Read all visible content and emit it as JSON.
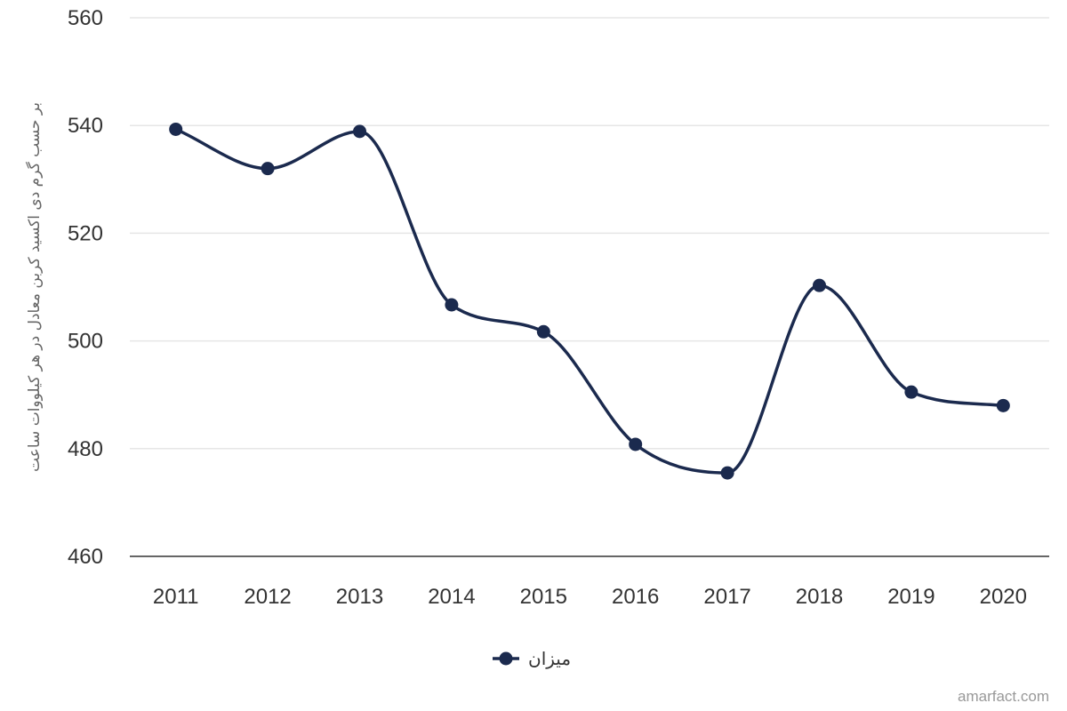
{
  "chart_data": {
    "type": "line",
    "smooth": true,
    "categories": [
      "2011",
      "2012",
      "2013",
      "2014",
      "2015",
      "2016",
      "2017",
      "2018",
      "2019",
      "2020"
    ],
    "series": [
      {
        "name": "میزان",
        "values": [
          539.3,
          532.0,
          538.9,
          506.7,
          501.7,
          480.8,
          475.5,
          510.3,
          490.5,
          488.0
        ],
        "color": "#1b2a4e"
      }
    ],
    "ylabel": "بر حسب گرم دی اکسید کربن معادل در هر کیلووات ساعت",
    "ylim": [
      460,
      560
    ],
    "yticks": [
      460,
      480,
      500,
      520,
      540,
      560
    ],
    "grid": true,
    "legend": "bottom-center",
    "credit": "amarfact.com"
  },
  "colors": {
    "series": "#1b2a4e",
    "grid": "#e6e6e6",
    "axis": "#333333"
  }
}
